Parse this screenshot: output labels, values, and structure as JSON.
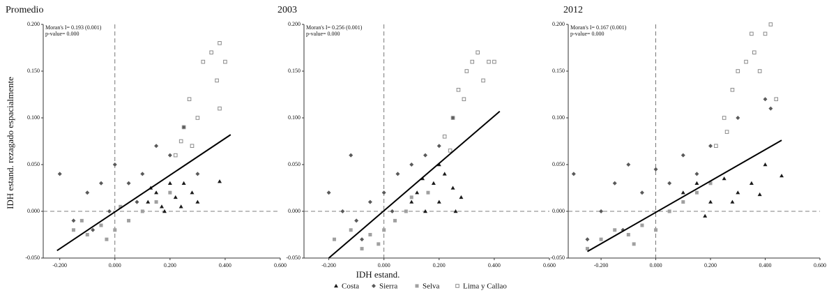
{
  "chart_data": [
    {
      "type": "scatter",
      "title": "Promedio",
      "annotations": [
        "Moran's I= 0.193 (0.001)",
        "p-value= 0.000"
      ],
      "ylabel": "IDH estand. rezagado espacialmente",
      "xlim": [
        -0.26,
        0.6
      ],
      "ylim": [
        -0.05,
        0.2
      ],
      "xticks": [
        {
          "value": -0.2,
          "label": "-0.200"
        },
        {
          "value": 0,
          "label": "0.000"
        },
        {
          "value": 0.2,
          "label": "0.200"
        },
        {
          "value": 0.4,
          "label": "0.400"
        },
        {
          "value": 0.6,
          "label": "0.600"
        }
      ],
      "yticks": [
        {
          "value": -0.05,
          "label": "-0.050"
        },
        {
          "value": 0,
          "label": "0.000"
        },
        {
          "value": 0.05,
          "label": "0.050"
        },
        {
          "value": 0.1,
          "label": "0.100"
        },
        {
          "value": 0.15,
          "label": "0.150"
        },
        {
          "value": 0.2,
          "label": "0.200"
        }
      ],
      "fit": {
        "x": [
          -0.21,
          0.42
        ],
        "y": [
          -0.042,
          0.082
        ]
      },
      "series": [
        {
          "name": "Costa",
          "marker": "triangle",
          "color": "#1a1a1a",
          "x": [
            0.12,
            0.15,
            0.18,
            0.2,
            0.22,
            0.25,
            0.28,
            0.3,
            0.17,
            0.13,
            0.24,
            0.38
          ],
          "y": [
            0.01,
            0.02,
            0.0,
            0.03,
            0.015,
            0.03,
            0.02,
            0.01,
            0.005,
            0.025,
            0.005,
            0.032
          ]
        },
        {
          "name": "Sierra",
          "marker": "diamond",
          "color": "#5a5a5a",
          "x": [
            -0.2,
            -0.15,
            -0.1,
            -0.05,
            0.0,
            0.05,
            0.1,
            -0.08,
            0.15,
            0.2,
            0.25,
            0.3,
            -0.02,
            0.08
          ],
          "y": [
            0.04,
            -0.01,
            0.02,
            0.03,
            0.05,
            0.03,
            0.04,
            -0.02,
            0.07,
            0.06,
            0.09,
            0.04,
            0.0,
            0.01
          ]
        },
        {
          "name": "Selva",
          "marker": "square",
          "color": "#a0a0a0",
          "x": [
            -0.15,
            -0.1,
            -0.05,
            0.0,
            0.05,
            0.1,
            -0.12,
            0.02,
            0.15,
            0.2,
            -0.03
          ],
          "y": [
            -0.02,
            -0.025,
            -0.015,
            -0.02,
            -0.01,
            0.0,
            -0.01,
            0.005,
            0.01,
            0.02,
            -0.03
          ]
        },
        {
          "name": "Lima y Callao",
          "marker": "open-square",
          "color": "#8a8a8a",
          "x": [
            0.22,
            0.25,
            0.27,
            0.3,
            0.32,
            0.35,
            0.38,
            0.37,
            0.4,
            0.38,
            0.28,
            0.24
          ],
          "y": [
            0.06,
            0.09,
            0.12,
            0.1,
            0.16,
            0.17,
            0.18,
            0.14,
            0.16,
            0.11,
            0.07,
            0.075
          ]
        }
      ]
    },
    {
      "type": "scatter",
      "title": "2003",
      "annotations": [
        "Moran's I= 0.256 (0.001)",
        "p-value= 0.000"
      ],
      "xlabel": "IDH estand.",
      "xlim": [
        -0.29,
        0.6
      ],
      "ylim": [
        -0.05,
        0.2
      ],
      "xticks": [
        {
          "value": -0.2,
          "label": "-0.200"
        },
        {
          "value": 0,
          "label": "0.000"
        },
        {
          "value": 0.2,
          "label": "0.200"
        },
        {
          "value": 0.4,
          "label": "0.400"
        },
        {
          "value": 0.6,
          "label": "0.600"
        }
      ],
      "yticks": [
        {
          "value": -0.05,
          "label": "-0.050"
        },
        {
          "value": 0,
          "label": "0.000"
        },
        {
          "value": 0.05,
          "label": "0.050"
        },
        {
          "value": 0.1,
          "label": "0.100"
        },
        {
          "value": 0.15,
          "label": "0.150"
        },
        {
          "value": 0.2,
          "label": "0.200"
        }
      ],
      "fit": {
        "x": [
          -0.2,
          0.42
        ],
        "y": [
          -0.05,
          0.107
        ]
      },
      "series": [
        {
          "name": "Costa",
          "marker": "triangle",
          "color": "#1a1a1a",
          "x": [
            0.12,
            0.15,
            0.18,
            0.2,
            0.22,
            0.25,
            0.28,
            0.14,
            0.2,
            0.26,
            0.1
          ],
          "y": [
            0.02,
            0.0,
            0.03,
            0.01,
            0.04,
            0.025,
            0.015,
            0.035,
            0.05,
            0.0,
            0.01
          ]
        },
        {
          "name": "Sierra",
          "marker": "diamond",
          "color": "#5a5a5a",
          "x": [
            -0.2,
            -0.15,
            -0.1,
            -0.05,
            0.0,
            0.05,
            0.1,
            0.15,
            0.2,
            -0.08,
            -0.12,
            0.25,
            0.03
          ],
          "y": [
            0.02,
            0.0,
            -0.01,
            0.01,
            0.02,
            0.04,
            0.05,
            0.06,
            0.07,
            -0.03,
            0.06,
            0.1,
            0.0
          ]
        },
        {
          "name": "Selva",
          "marker": "square",
          "color": "#a0a0a0",
          "x": [
            -0.18,
            -0.12,
            -0.08,
            -0.05,
            0.0,
            0.04,
            0.08,
            -0.02,
            0.1,
            0.16
          ],
          "y": [
            -0.03,
            -0.02,
            -0.04,
            -0.025,
            -0.02,
            -0.01,
            0.0,
            -0.035,
            0.015,
            0.02
          ]
        },
        {
          "name": "Lima y Callao",
          "marker": "open-square",
          "color": "#8a8a8a",
          "x": [
            0.22,
            0.25,
            0.27,
            0.3,
            0.32,
            0.34,
            0.38,
            0.36,
            0.4,
            0.29,
            0.24
          ],
          "y": [
            0.08,
            0.1,
            0.13,
            0.15,
            0.16,
            0.17,
            0.16,
            0.14,
            0.16,
            0.12,
            0.065
          ]
        }
      ]
    },
    {
      "type": "scatter",
      "title": "2012",
      "annotations": [
        "Moran's I= 0.167 (0.001)",
        "p-value= 0.000"
      ],
      "xlim": [
        -0.32,
        0.6
      ],
      "ylim": [
        -0.05,
        0.2
      ],
      "xticks": [
        {
          "value": -0.2,
          "label": "-0.200"
        },
        {
          "value": 0,
          "label": "0.000"
        },
        {
          "value": 0.2,
          "label": "0.200"
        },
        {
          "value": 0.4,
          "label": "0.400"
        },
        {
          "value": 0.6,
          "label": "0.600"
        }
      ],
      "yticks": [
        {
          "value": -0.05,
          "label": "-0.050"
        },
        {
          "value": 0,
          "label": "0.000"
        },
        {
          "value": 0.05,
          "label": "0.050"
        },
        {
          "value": 0.1,
          "label": "0.100"
        },
        {
          "value": 0.15,
          "label": "0.150"
        },
        {
          "value": 0.2,
          "label": "0.200"
        }
      ],
      "fit": {
        "x": [
          -0.25,
          0.46
        ],
        "y": [
          -0.043,
          0.076
        ]
      },
      "series": [
        {
          "name": "Costa",
          "marker": "triangle",
          "color": "#1a1a1a",
          "x": [
            0.1,
            0.15,
            0.2,
            0.25,
            0.3,
            0.35,
            0.4,
            0.46,
            0.18,
            0.28,
            0.38
          ],
          "y": [
            0.02,
            0.03,
            0.01,
            0.035,
            0.02,
            0.03,
            0.05,
            0.038,
            -0.005,
            0.01,
            0.018
          ]
        },
        {
          "name": "Sierra",
          "marker": "diamond",
          "color": "#5a5a5a",
          "x": [
            -0.3,
            -0.25,
            -0.2,
            -0.15,
            -0.1,
            -0.05,
            0.0,
            0.05,
            0.1,
            0.15,
            0.2,
            0.3,
            0.4,
            0.42,
            -0.12
          ],
          "y": [
            0.04,
            -0.03,
            0.0,
            0.03,
            0.05,
            0.02,
            0.045,
            0.03,
            0.06,
            0.04,
            0.07,
            0.1,
            0.12,
            0.11,
            -0.02
          ]
        },
        {
          "name": "Selva",
          "marker": "square",
          "color": "#a0a0a0",
          "x": [
            -0.25,
            -0.2,
            -0.15,
            -0.1,
            -0.05,
            0.0,
            0.05,
            0.1,
            0.15,
            0.2,
            -0.08
          ],
          "y": [
            -0.04,
            -0.03,
            -0.02,
            -0.025,
            -0.015,
            -0.02,
            0.0,
            0.01,
            0.02,
            0.03,
            -0.035
          ]
        },
        {
          "name": "Lima y Callao",
          "marker": "open-square",
          "color": "#8a8a8a",
          "x": [
            0.22,
            0.25,
            0.28,
            0.3,
            0.33,
            0.36,
            0.4,
            0.42,
            0.44,
            0.38,
            0.35,
            0.26
          ],
          "y": [
            0.07,
            0.1,
            0.13,
            0.15,
            0.16,
            0.17,
            0.19,
            0.2,
            0.12,
            0.15,
            0.19,
            0.085
          ]
        }
      ]
    }
  ]
}
